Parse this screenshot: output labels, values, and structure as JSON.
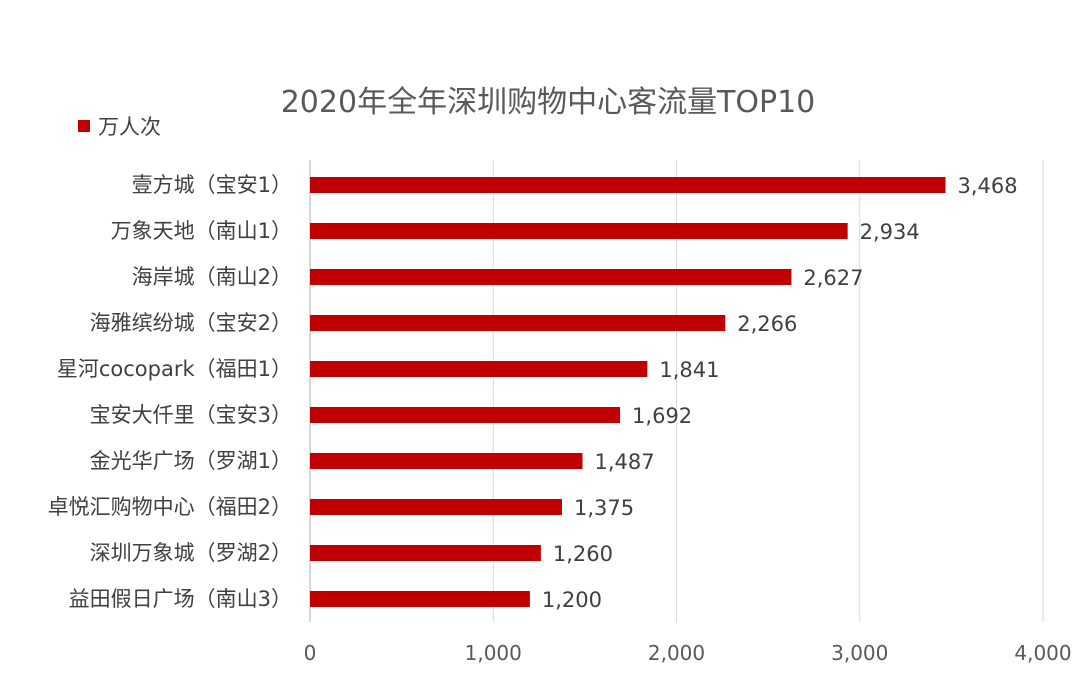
{
  "chart_data": {
    "type": "bar",
    "orientation": "horizontal",
    "title": "2020年全年深圳购物中心客流量TOP10",
    "legend": {
      "label": "万人次",
      "color": "#c00000",
      "position": "top-left"
    },
    "categories": [
      "壹方城（宝安1）",
      "万象天地（南山1）",
      "海岸城（南山2）",
      "海雅缤纷城（宝安2）",
      "星河cocopark（福田1）",
      "宝安大仟里（宝安3）",
      "金光华广场（罗湖1）",
      "卓悦汇购物中心（福田2）",
      "深圳万象城（罗湖2）",
      "益田假日广场（南山3）"
    ],
    "series": [
      {
        "name": "万人次",
        "values": [
          3468,
          2934,
          2627,
          2266,
          1841,
          1692,
          1487,
          1375,
          1260,
          1200
        ],
        "labels": [
          "3,468",
          "2,934",
          "2,627",
          "2,266",
          "1,841",
          "1,692",
          "1,487",
          "1,375",
          "1,260",
          "1,200"
        ]
      }
    ],
    "xlim": [
      0,
      4000
    ],
    "xticks": [
      0,
      1000,
      2000,
      3000,
      4000
    ],
    "xtick_labels": [
      "0",
      "1,000",
      "2,000",
      "3,000",
      "4,000"
    ],
    "grid": "vertical",
    "bar_color": "#c00000"
  }
}
